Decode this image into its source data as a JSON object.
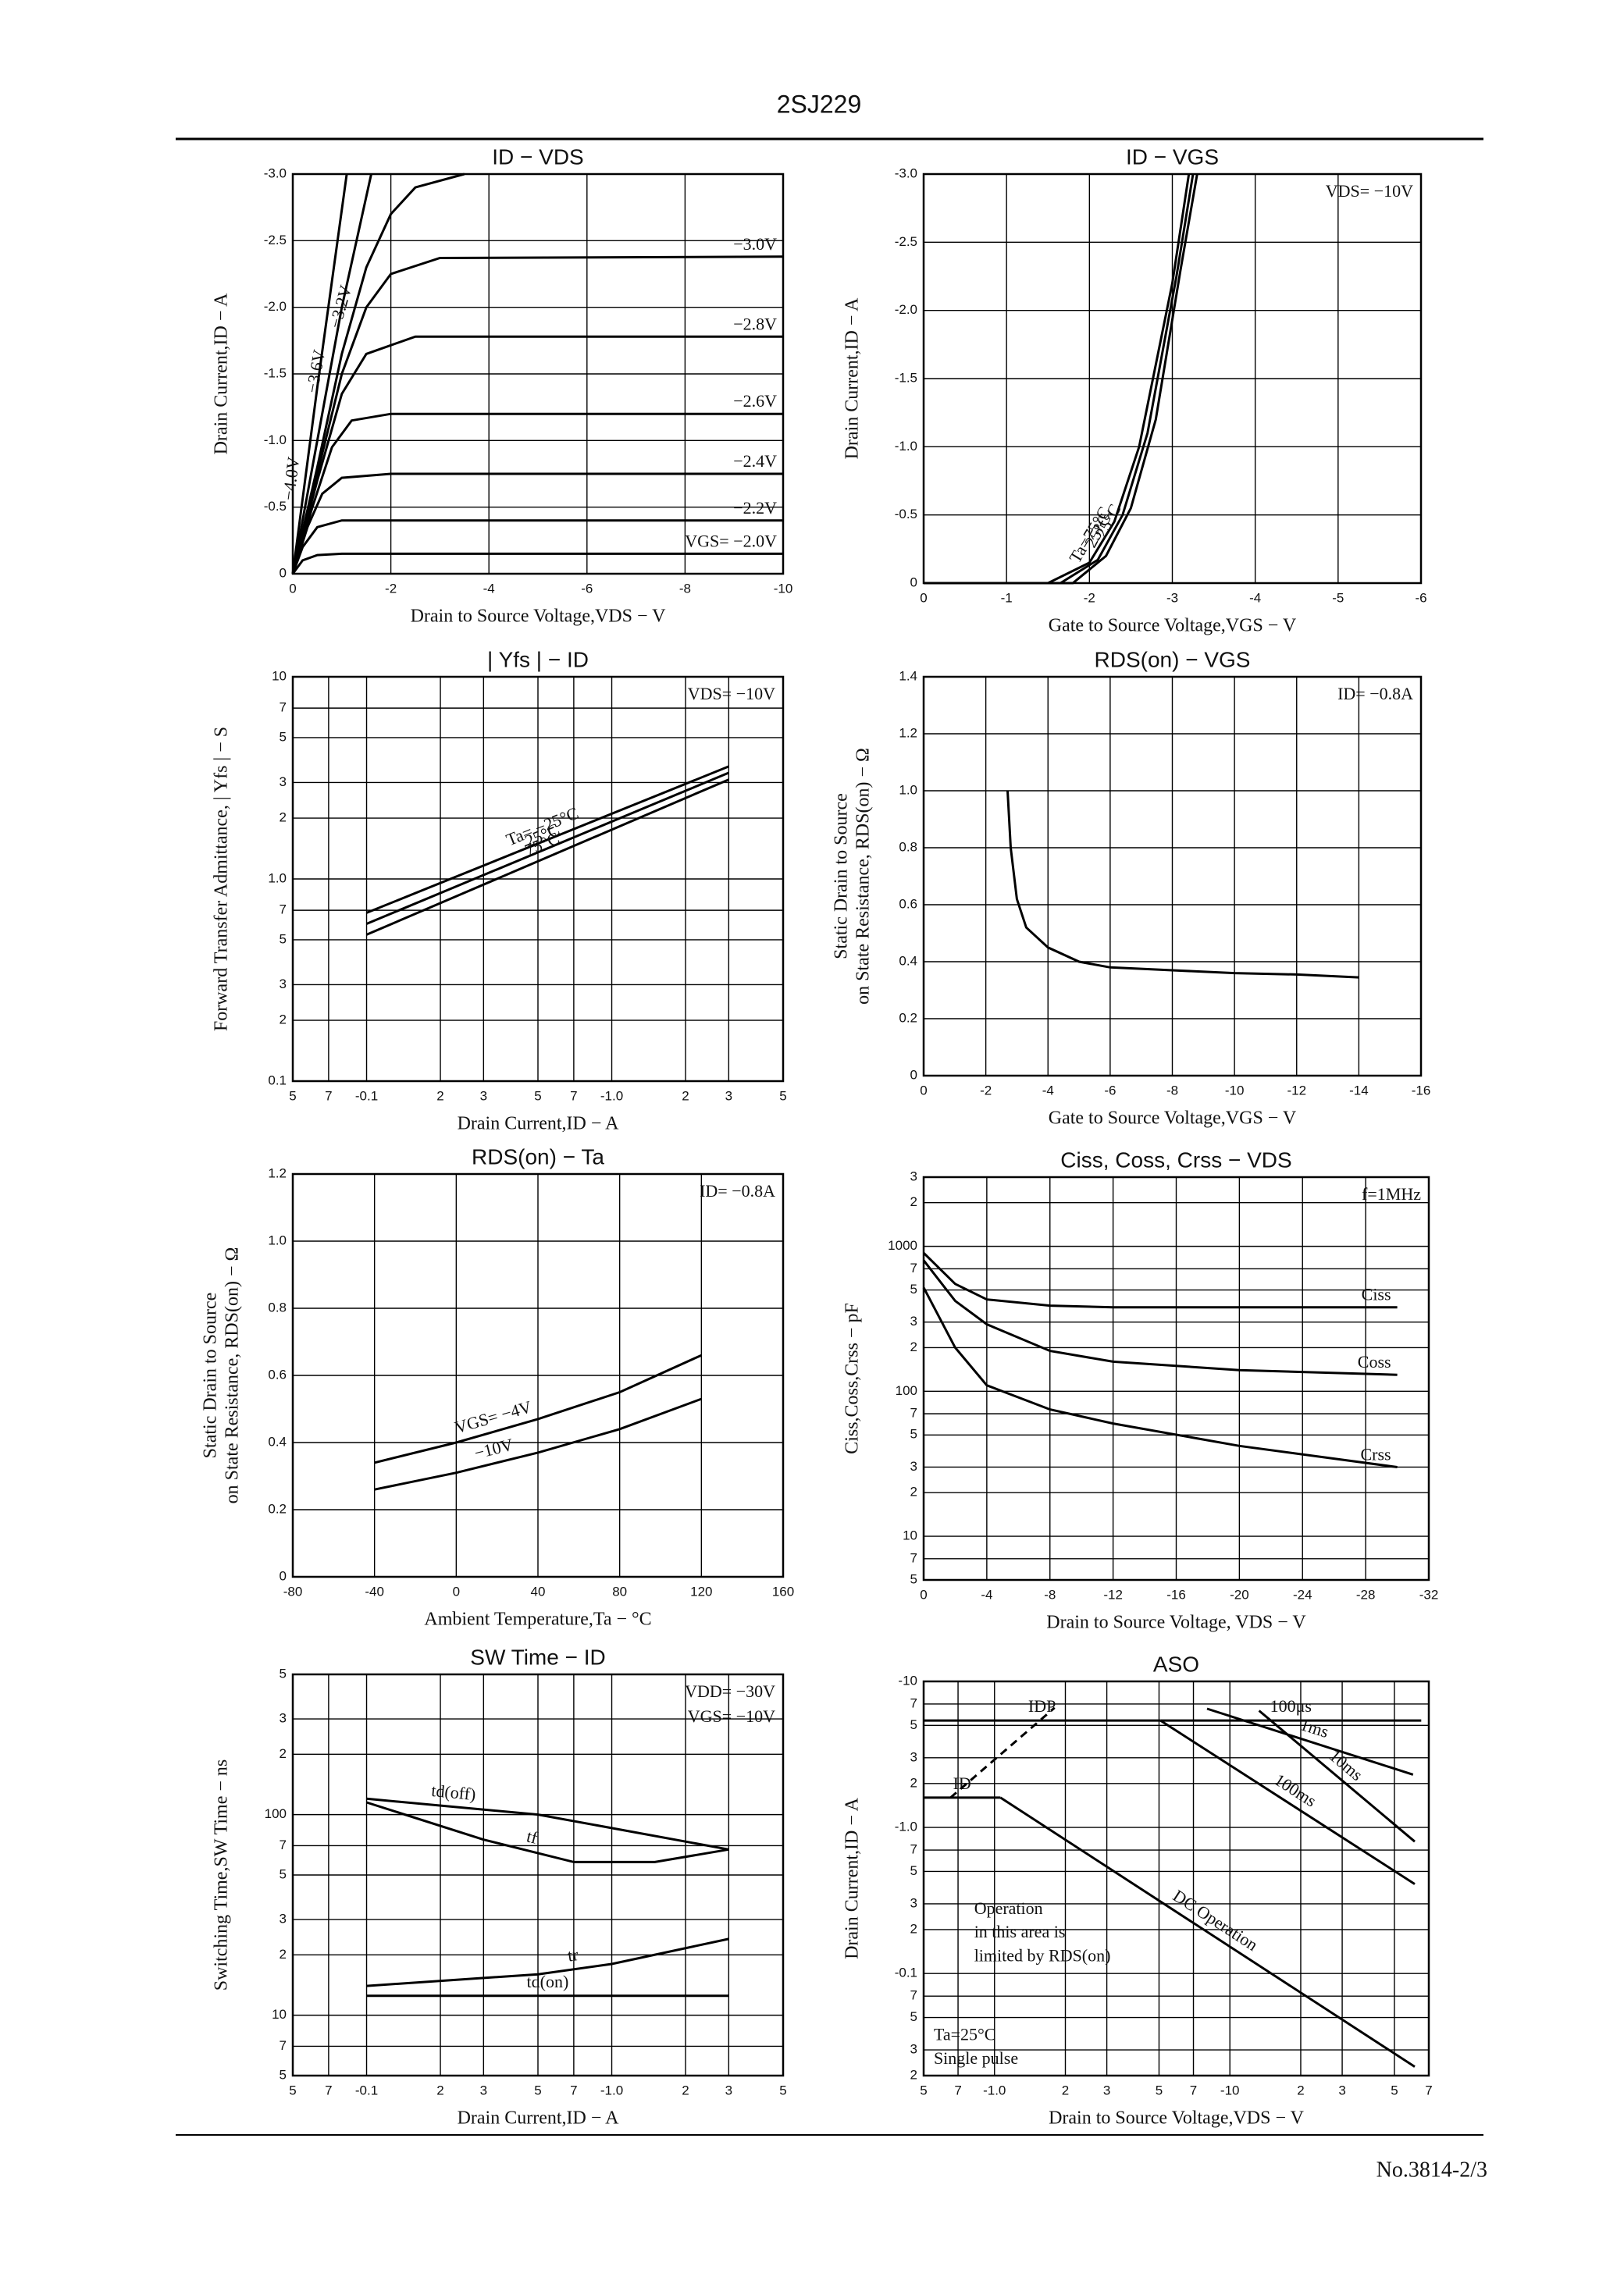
{
  "header": {
    "title": "2SJ229"
  },
  "footer": {
    "text": "No.3814-2/3"
  },
  "chart_data": [
    {
      "type": "line",
      "title": "ID − VDS",
      "xlabel": "Drain to Source Voltage,VDS − V",
      "ylabel": "Drain Current,ID − A",
      "xlim": [
        0,
        -10
      ],
      "ylim": [
        0,
        -3
      ],
      "grid": true,
      "xticks": [
        0,
        -2,
        -4,
        -6,
        -8,
        -10
      ],
      "yticks": [
        {
          "value": -3,
          "label": "-3.0"
        },
        -2.5,
        {
          "value": -2,
          "label": "-2.0"
        },
        -1.5,
        {
          "value": -1,
          "label": "-1.0"
        },
        -0.5,
        0
      ],
      "series": [
        {
          "name": "VGS= −2.0V",
          "x": [
            0,
            -0.2,
            -0.5,
            -1,
            -2,
            -10
          ],
          "values": [
            0,
            -0.1,
            -0.14,
            -0.15,
            -0.15,
            -0.15
          ]
        },
        {
          "name": "−2.2V",
          "x": [
            0,
            -0.2,
            -0.5,
            -1,
            -2,
            -10
          ],
          "values": [
            0,
            -0.2,
            -0.35,
            -0.4,
            -0.4,
            -0.4
          ]
        },
        {
          "name": "−2.4V",
          "x": [
            0,
            -0.3,
            -0.6,
            -1,
            -2,
            -10
          ],
          "values": [
            0,
            -0.35,
            -0.6,
            -0.72,
            -0.75,
            -0.75
          ]
        },
        {
          "name": "−2.6V",
          "x": [
            0,
            -0.4,
            -0.8,
            -1.2,
            -2,
            -10
          ],
          "values": [
            0,
            -0.5,
            -0.95,
            -1.15,
            -1.2,
            -1.2
          ]
        },
        {
          "name": "−2.8V",
          "x": [
            0,
            -0.5,
            -1,
            -1.5,
            -2.5,
            -10
          ],
          "values": [
            0,
            -0.7,
            -1.35,
            -1.65,
            -1.78,
            -1.78
          ]
        },
        {
          "name": "−3.0V",
          "x": [
            0,
            -0.5,
            -1,
            -1.5,
            -2,
            -3,
            -10
          ],
          "values": [
            0,
            -0.75,
            -1.5,
            -2,
            -2.25,
            -2.37,
            -2.38
          ]
        },
        {
          "name": "−3.2V",
          "x": [
            0,
            -0.5,
            -1,
            -1.5,
            -2,
            -2.5,
            -3.5
          ],
          "values": [
            0,
            -0.8,
            -1.65,
            -2.3,
            -2.7,
            -2.9,
            -3
          ]
        },
        {
          "name": "−3.6V",
          "x": [
            0,
            -0.5,
            -1,
            -1.6
          ],
          "values": [
            0,
            -1,
            -2,
            -3
          ]
        },
        {
          "name": "−4.0V",
          "x": [
            0,
            -0.5,
            -1.1
          ],
          "values": [
            0,
            -1.4,
            -3
          ]
        }
      ]
    },
    {
      "type": "line",
      "title": "ID − VGS",
      "xlabel": "Gate to Source Voltage,VGS − V",
      "ylabel": "Drain Current,ID − A",
      "xlim": [
        0,
        -6
      ],
      "ylim": [
        0,
        -3
      ],
      "grid": true,
      "xticks": [
        0,
        -1,
        -2,
        -3,
        -4,
        -5,
        -6
      ],
      "yticks": [
        {
          "value": -3,
          "label": "-3.0"
        },
        -2.5,
        {
          "value": -2,
          "label": "-2.0"
        },
        -1.5,
        {
          "value": -1,
          "label": "-1.0"
        },
        -0.5,
        0
      ],
      "annotations": [
        "VDS= −10V"
      ],
      "series": [
        {
          "name": "Ta=75°C",
          "x": [
            0,
            -1.5,
            -2,
            -2.3,
            -2.6,
            -3,
            -3.2
          ],
          "values": [
            0,
            0,
            -0.15,
            -0.45,
            -1,
            -2.2,
            -3
          ]
        },
        {
          "name": "−25°C",
          "x": [
            0,
            -1.8,
            -2.2,
            -2.5,
            -2.8,
            -3.1,
            -3.3
          ],
          "values": [
            0,
            0,
            -0.2,
            -0.55,
            -1.2,
            -2.3,
            -3
          ]
        },
        {
          "name": "25°C",
          "x": [
            0,
            -1.65,
            -2.1,
            -2.4,
            -2.7,
            -3.05,
            -3.25
          ],
          "values": [
            0,
            0,
            -0.17,
            -0.5,
            -1.1,
            -2.25,
            -3
          ]
        }
      ]
    },
    {
      "type": "line",
      "title": "| Yfs | − ID",
      "xlabel": "Drain Current,ID − A",
      "ylabel": "Forward Transfer Admittance, | Yfs | − S",
      "xlog": true,
      "ylog": true,
      "xlim": [
        -0.05,
        -5
      ],
      "ylim": [
        0.1,
        10
      ],
      "grid": true,
      "xticks": [
        {
          "value": -0.05,
          "label": "5"
        },
        {
          "value": -0.07,
          "label": "7"
        },
        -0.1,
        {
          "value": -0.2,
          "label": "2"
        },
        {
          "value": -0.3,
          "label": "3"
        },
        {
          "value": -0.5,
          "label": "5"
        },
        {
          "value": -0.7,
          "label": "7"
        },
        {
          "value": -1,
          "label": "-1.0"
        },
        {
          "value": -2,
          "label": "2"
        },
        {
          "value": -3,
          "label": "3"
        },
        {
          "value": -5,
          "label": "5"
        }
      ],
      "yticks": [
        0.1,
        {
          "value": 0.2,
          "label": "2"
        },
        {
          "value": 0.3,
          "label": "3"
        },
        {
          "value": 0.5,
          "label": "5"
        },
        {
          "value": 0.7,
          "label": "7"
        },
        {
          "value": 1,
          "label": "1.0"
        },
        2,
        3,
        5,
        7,
        10
      ],
      "annotations": [
        "VDS= −10V"
      ],
      "series": [
        {
          "name": "Ta= −25°C",
          "x": [
            -0.1,
            -3
          ],
          "values": [
            0.68,
            3.6
          ]
        },
        {
          "name": "25°C",
          "x": [
            -0.1,
            -3
          ],
          "values": [
            0.6,
            3.35
          ]
        },
        {
          "name": "75°C",
          "x": [
            -0.1,
            -3
          ],
          "values": [
            0.53,
            3.1
          ]
        }
      ]
    },
    {
      "type": "line",
      "title": "RDS(on) − VGS",
      "xlabel": "Gate to Source Voltage,VGS − V",
      "ylabel": [
        "Static Drain to Source",
        "on State Resistance, RDS(on) − Ω"
      ],
      "xlim": [
        0,
        -16
      ],
      "ylim": [
        0,
        1.4
      ],
      "grid": true,
      "xticks": [
        0,
        -2,
        -4,
        -6,
        -8,
        -10,
        -12,
        -14,
        -16
      ],
      "yticks": [
        0,
        0.2,
        0.4,
        0.6,
        0.8,
        {
          "value": 1,
          "label": "1.0"
        },
        1.2,
        1.4
      ],
      "annotations": [
        "ID= −0.8A"
      ],
      "series": [
        {
          "x": [
            -2.7,
            -2.8,
            -3,
            -3.3,
            -4,
            -5,
            -6,
            -8,
            -10,
            -12,
            -14
          ],
          "values": [
            1.0,
            0.8,
            0.62,
            0.52,
            0.45,
            0.4,
            0.38,
            0.37,
            0.36,
            0.355,
            0.345
          ]
        }
      ]
    },
    {
      "type": "line",
      "title": "RDS(on) − Ta",
      "xlabel": "Ambient Temperature,Ta − °C",
      "ylabel": [
        "Static Drain to Source",
        "on State Resistance, RDS(on) − Ω"
      ],
      "xlim": [
        -80,
        160
      ],
      "ylim": [
        0,
        1.2
      ],
      "grid": true,
      "xticks": [
        -80,
        -40,
        0,
        40,
        80,
        120,
        160
      ],
      "yticks": [
        0,
        0.2,
        0.4,
        0.6,
        0.8,
        {
          "value": 1,
          "label": "1.0"
        },
        1.2
      ],
      "annotations": [
        "ID= −0.8A"
      ],
      "series": [
        {
          "name": "VGS= −4V",
          "x": [
            -40,
            0,
            40,
            80,
            120
          ],
          "values": [
            0.34,
            0.4,
            0.47,
            0.55,
            0.66
          ]
        },
        {
          "name": "−10V",
          "x": [
            -40,
            0,
            40,
            80,
            120
          ],
          "values": [
            0.26,
            0.31,
            0.37,
            0.44,
            0.53
          ]
        }
      ]
    },
    {
      "type": "line",
      "title": "Ciss, Coss, Crss − VDS",
      "xlabel": "Drain to Source Voltage, VDS − V",
      "ylabel": "Ciss,Coss,Crss − pF",
      "ylog": true,
      "xlim": [
        0,
        -32
      ],
      "ylim": [
        5,
        3000
      ],
      "grid": true,
      "xticks": [
        0,
        -4,
        -8,
        -12,
        -16,
        -20,
        -24,
        -28,
        -32
      ],
      "yticks": [
        5,
        7,
        10,
        {
          "value": 20,
          "label": "2"
        },
        {
          "value": 30,
          "label": "3"
        },
        {
          "value": 50,
          "label": "5"
        },
        {
          "value": 70,
          "label": "7"
        },
        100,
        {
          "value": 200,
          "label": "2"
        },
        {
          "value": 300,
          "label": "3"
        },
        {
          "value": 500,
          "label": "5"
        },
        {
          "value": 700,
          "label": "7"
        },
        1000,
        {
          "value": 2000,
          "label": "2"
        },
        {
          "value": 3000,
          "label": "3"
        }
      ],
      "annotations": [
        "f=1MHz"
      ],
      "series": [
        {
          "name": "Ciss",
          "x": [
            0,
            -2,
            -4,
            -8,
            -12,
            -20,
            -30
          ],
          "values": [
            900,
            550,
            430,
            390,
            380,
            380,
            380
          ]
        },
        {
          "name": "Coss",
          "x": [
            0,
            -2,
            -4,
            -8,
            -12,
            -20,
            -30
          ],
          "values": [
            800,
            420,
            290,
            190,
            160,
            140,
            130
          ]
        },
        {
          "name": "Crss",
          "x": [
            0,
            -2,
            -4,
            -8,
            -12,
            -20,
            -30
          ],
          "values": [
            520,
            200,
            110,
            75,
            60,
            42,
            30
          ]
        }
      ]
    },
    {
      "type": "line",
      "title": "SW Time − ID",
      "xlabel": "Drain Current,ID − A",
      "ylabel": "Switching Time,SW Time − ns",
      "xlog": true,
      "ylog": true,
      "xlim": [
        -0.05,
        -5
      ],
      "ylim": [
        5,
        500
      ],
      "grid": true,
      "xticks": [
        {
          "value": -0.05,
          "label": "5"
        },
        {
          "value": -0.07,
          "label": "7"
        },
        -0.1,
        {
          "value": -0.2,
          "label": "2"
        },
        {
          "value": -0.3,
          "label": "3"
        },
        {
          "value": -0.5,
          "label": "5"
        },
        {
          "value": -0.7,
          "label": "7"
        },
        {
          "value": -1,
          "label": "-1.0"
        },
        {
          "value": -2,
          "label": "2"
        },
        {
          "value": -3,
          "label": "3"
        },
        {
          "value": -5,
          "label": "5"
        }
      ],
      "yticks": [
        5,
        7,
        10,
        {
          "value": 20,
          "label": "2"
        },
        {
          "value": 30,
          "label": "3"
        },
        {
          "value": 50,
          "label": "5"
        },
        {
          "value": 70,
          "label": "7"
        },
        100,
        {
          "value": 200,
          "label": "2"
        },
        {
          "value": 300,
          "label": "3"
        },
        {
          "value": 500,
          "label": "5"
        }
      ],
      "annotations": [
        "VDD= −30V",
        "VGS= −10V"
      ],
      "series": [
        {
          "name": "td(off)",
          "x": [
            -0.1,
            -0.5,
            -3
          ],
          "values": [
            120,
            100,
            67
          ]
        },
        {
          "name": "tf",
          "x": [
            -0.1,
            -0.3,
            -0.7,
            -1.5,
            -3
          ],
          "values": [
            115,
            75,
            58,
            58,
            67
          ]
        },
        {
          "name": "tr",
          "x": [
            -0.1,
            -0.5,
            -1,
            -3
          ],
          "values": [
            14,
            16,
            18,
            24
          ]
        },
        {
          "name": "td(on)",
          "x": [
            -0.1,
            -3
          ],
          "values": [
            12.5,
            12.5
          ]
        }
      ]
    },
    {
      "type": "line",
      "title": "ASO",
      "xlabel": "Drain to Source Voltage,VDS − V",
      "ylabel": "Drain Current,ID − A",
      "xlog": true,
      "ylog": true,
      "xlim": [
        -0.5,
        -70
      ],
      "ylim": [
        -0.02,
        -10
      ],
      "grid": true,
      "xticks": [
        {
          "value": -0.5,
          "label": "5"
        },
        {
          "value": -0.7,
          "label": "7"
        },
        {
          "value": -1,
          "label": "-1.0"
        },
        {
          "value": -2,
          "label": "2"
        },
        {
          "value": -3,
          "label": "3"
        },
        {
          "value": -5,
          "label": "5"
        },
        {
          "value": -7,
          "label": "7"
        },
        -10,
        {
          "value": -20,
          "label": "2"
        },
        {
          "value": -30,
          "label": "3"
        },
        {
          "value": -50,
          "label": "5"
        },
        {
          "value": -70,
          "label": "7"
        }
      ],
      "yticks": [
        -10,
        {
          "value": -7,
          "label": "7"
        },
        {
          "value": -5,
          "label": "5"
        },
        {
          "value": -3,
          "label": "3"
        },
        {
          "value": -2,
          "label": "2"
        },
        {
          "value": -1,
          "label": "-1.0"
        },
        {
          "value": -0.7,
          "label": "7"
        },
        {
          "value": -0.5,
          "label": "5"
        },
        {
          "value": -0.3,
          "label": "3"
        },
        {
          "value": -0.2,
          "label": "2"
        },
        -0.1,
        {
          "value": -0.07,
          "label": "7"
        },
        {
          "value": -0.05,
          "label": "5"
        },
        {
          "value": -0.03,
          "label": "3"
        },
        {
          "value": -0.02,
          "label": "2"
        }
      ],
      "annotations": [
        "Operation",
        "in this area is",
        "limited by RDS(on)",
        "Ta=25°C",
        "Single pulse"
      ],
      "series": [
        {
          "name": "IDP",
          "x": [
            -0.5,
            -5.07
          ],
          "values": [
            -5.4,
            -5.4
          ]
        },
        {
          "name": "ID",
          "x": [
            -0.5,
            -1.06
          ],
          "values": [
            -1.6,
            -1.6
          ]
        },
        {
          "dash": true,
          "x": [
            -0.65,
            -1.8
          ],
          "values": [
            -1.6,
            -6.6
          ]
        },
        {
          "name": "100μs",
          "x": [
            -5.07,
            -65
          ],
          "values": [
            -5.4,
            -5.4
          ]
        },
        {
          "name": "1ms",
          "x": [
            -8,
            -60
          ],
          "values": [
            -6.5,
            -2.3
          ]
        },
        {
          "name": "10ms",
          "x": [
            -13.3,
            -61
          ],
          "values": [
            -6.3,
            -0.8
          ]
        },
        {
          "name": "100ms",
          "x": [
            -5.07,
            -61
          ],
          "values": [
            -5.4,
            -0.41
          ]
        },
        {
          "name": "DC Operation",
          "x": [
            -1.06,
            -61
          ],
          "values": [
            -1.6,
            -0.023
          ]
        }
      ]
    }
  ]
}
